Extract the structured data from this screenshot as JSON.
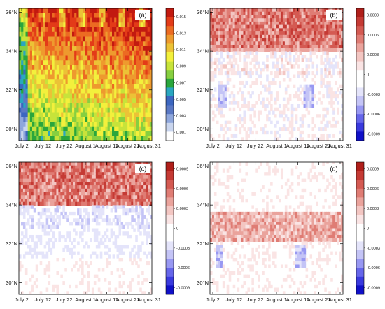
{
  "colors": {
    "panel_a_scale": [
      "#ffffff",
      "#c9d5ee",
      "#8fa7dc",
      "#5a78c4",
      "#3c66c0",
      "#2aa6c0",
      "#2aa63c",
      "#86cf40",
      "#c7e33a",
      "#f3f03c",
      "#ecc236",
      "#ee9a2e",
      "#ec6b22",
      "#e33b18",
      "#c21a10"
    ],
    "diverging_scale": [
      "#1010c8",
      "#3a3ade",
      "#6666ea",
      "#9898f2",
      "#c4c4f6",
      "#e4e4fa",
      "#ffffff",
      "#ffffff",
      "#fae4e4",
      "#f3c6c2",
      "#eaa39c",
      "#df7c74",
      "#d45a52",
      "#c53a34",
      "#b01f1a"
    ]
  },
  "chart_data": [
    {
      "id": "a",
      "type": "heatmap",
      "panel_label": "(a)",
      "x_ticklabels": [
        "July 2",
        "July 12",
        "July 22",
        "August 1",
        "August 11",
        "August 21",
        "August 31"
      ],
      "y_ticklabels": [
        "30°N",
        "32°N",
        "34°N",
        "36°N"
      ],
      "y_range": [
        29.4,
        36.2
      ],
      "colorbar_labels": [
        "0.015",
        "0.013",
        "0.011",
        "0.009",
        "0.007",
        "0.005",
        "0.003",
        "0.001"
      ],
      "colorbar_range": [
        0.0,
        0.016
      ]
    },
    {
      "id": "b",
      "type": "heatmap",
      "panel_label": "(b)",
      "x_ticklabels": [
        "July 2",
        "July 12",
        "July 22",
        "August 1",
        "August 11",
        "August 21",
        "August 31"
      ],
      "y_ticklabels": [
        "30°N",
        "32°N",
        "34°N",
        "36°N"
      ],
      "y_range": [
        29.4,
        36.2
      ],
      "colorbar_labels": [
        "0.0009",
        "0.0006",
        "0.0003",
        "0",
        "-0.0003",
        "-0.0006",
        "-0.0009"
      ],
      "colorbar_range": [
        -0.001,
        0.001
      ]
    },
    {
      "id": "c",
      "type": "heatmap",
      "panel_label": "(c)",
      "x_ticklabels": [
        "July 2",
        "July 12",
        "July 22",
        "August 1",
        "August 11",
        "August 21",
        "August 31"
      ],
      "y_ticklabels": [
        "30°N",
        "32°N",
        "34°N",
        "36°N"
      ],
      "y_range": [
        29.4,
        36.2
      ],
      "colorbar_labels": [
        "0.0009",
        "0.0006",
        "0.0003",
        "0",
        "-0.0003",
        "-0.0006",
        "-0.0009"
      ],
      "colorbar_range": [
        -0.001,
        0.001
      ]
    },
    {
      "id": "d",
      "type": "heatmap",
      "panel_label": "(d)",
      "x_ticklabels": [
        "July 2",
        "July 12",
        "July 22",
        "August 1",
        "August 11",
        "August 21",
        "August 31"
      ],
      "y_ticklabels": [
        "30°N",
        "32°N",
        "34°N",
        "36°N"
      ],
      "y_range": [
        29.4,
        36.2
      ],
      "colorbar_labels": [
        "0.0009",
        "0.0006",
        "0.0003",
        "0",
        "-0.0003",
        "-0.0006",
        "-0.0009"
      ],
      "colorbar_range": [
        -0.001,
        0.001
      ]
    }
  ]
}
